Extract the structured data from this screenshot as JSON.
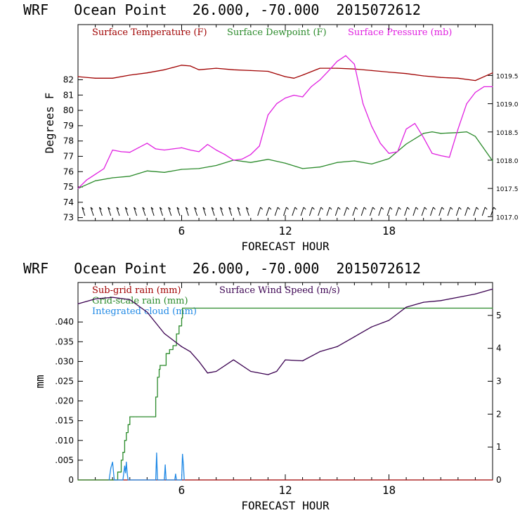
{
  "chart_data": [
    {
      "type": "line",
      "title": "WRF   Ocean Point   26.000, -70.000  2015072612",
      "xlabel": "FORECAST HOUR",
      "ylabel": "Degrees F",
      "xlim": [
        0,
        24
      ],
      "ylim": [
        72.8,
        85.6
      ],
      "y2lim": [
        1016.93,
        1020.4
      ],
      "x_ticks": [
        "6",
        "12",
        "18"
      ],
      "y_ticks": [
        "73",
        "74",
        "75",
        "76",
        "77",
        "78",
        "79",
        "80",
        "81",
        "82"
      ],
      "y2_ticks": [
        "1017.0",
        "1017.5",
        "1018.0",
        "1018.5",
        "1019.0",
        "1019.5"
      ],
      "grid": false,
      "legend_position": "top",
      "colors": {
        "temperature": "#a00000",
        "dewpoint": "#2a8a2a",
        "pressure": "#e020e0"
      },
      "series": [
        {
          "name": "Surface Temperature (F)",
          "axis": "left",
          "x": [
            0,
            1,
            2,
            3,
            4,
            5,
            6,
            6.5,
            7,
            8,
            9,
            10,
            11,
            12,
            12.5,
            13,
            14,
            15,
            16,
            17,
            18,
            19,
            20,
            21,
            22,
            23,
            24
          ],
          "y": [
            82.2,
            82.1,
            82.1,
            82.3,
            82.45,
            82.65,
            82.95,
            82.9,
            82.65,
            82.75,
            82.65,
            82.6,
            82.55,
            82.2,
            82.1,
            82.3,
            82.75,
            82.75,
            82.7,
            82.6,
            82.5,
            82.4,
            82.25,
            82.15,
            82.1,
            81.95,
            82.45
          ]
        },
        {
          "name": "Surface Dewpoint (F)",
          "axis": "left",
          "x": [
            0,
            1,
            2,
            3,
            4,
            5,
            6,
            7,
            8,
            9,
            10,
            11,
            12,
            13,
            14,
            15,
            16,
            17,
            18,
            19,
            20,
            20.5,
            21,
            22,
            22.5,
            23,
            24
          ],
          "y": [
            74.9,
            75.4,
            75.6,
            75.7,
            76.05,
            75.95,
            76.15,
            76.2,
            76.4,
            76.75,
            76.6,
            76.8,
            76.55,
            76.2,
            76.3,
            76.6,
            76.7,
            76.5,
            76.85,
            77.8,
            78.5,
            78.6,
            78.5,
            78.55,
            78.6,
            78.3,
            76.7
          ]
        },
        {
          "name": "Surface Pressure (mb)",
          "axis": "right",
          "x": [
            0,
            0.5,
            1,
            1.5,
            2,
            2.5,
            3,
            4,
            4.5,
            5,
            5.5,
            6,
            6.5,
            7,
            7.5,
            8,
            8.5,
            9,
            9.5,
            10,
            10.5,
            11,
            11.5,
            12,
            12.5,
            13,
            13.5,
            14,
            14.5,
            15,
            15.5,
            16,
            16.5,
            17,
            17.5,
            18,
            18.5,
            19,
            19.5,
            20,
            20.5,
            21,
            21.5,
            22,
            22.5,
            23,
            23.5,
            24
          ],
          "y": [
            1017.5,
            1017.65,
            1017.75,
            1017.85,
            1018.18,
            1018.15,
            1018.14,
            1018.3,
            1018.2,
            1018.18,
            1018.2,
            1018.22,
            1018.18,
            1018.15,
            1018.28,
            1018.18,
            1018.1,
            1018.0,
            1018.02,
            1018.1,
            1018.25,
            1018.8,
            1019.0,
            1019.1,
            1019.15,
            1019.12,
            1019.3,
            1019.42,
            1019.58,
            1019.75,
            1019.85,
            1019.7,
            1019.0,
            1018.6,
            1018.3,
            1018.12,
            1018.15,
            1018.55,
            1018.65,
            1018.4,
            1018.12,
            1018.08,
            1018.05,
            1018.55,
            1019.0,
            1019.2,
            1019.3,
            1019.3
          ]
        }
      ]
    },
    {
      "type": "line",
      "title": "WRF   Ocean Point   26.000, -70.000  2015072612",
      "xlabel": "FORECAST HOUR",
      "ylabel": "mm",
      "xlim": [
        0,
        24
      ],
      "ylim": [
        0,
        0.05
      ],
      "y2lim": [
        0,
        6.0
      ],
      "x_ticks": [
        "6",
        "12",
        "18"
      ],
      "y_ticks": [
        "0",
        ".005",
        ".010",
        ".015",
        ".020",
        ".025",
        ".030",
        ".035",
        ".040"
      ],
      "y2_ticks": [
        "0",
        "1",
        "2",
        "3",
        "4",
        "5"
      ],
      "grid": false,
      "legend_position": "top-left",
      "colors": {
        "subgrid": "#a00000",
        "gridscale": "#2a8a2a",
        "cloud": "#1e88e5",
        "wind": "#3a0050"
      },
      "series": [
        {
          "name": "Sub-grid rain (mm)",
          "axis": "left",
          "x": [
            0,
            24
          ],
          "y": [
            0,
            0
          ]
        },
        {
          "name": "Grid-scale rain (mm)",
          "axis": "left",
          "step": true,
          "x": [
            0,
            2,
            2.3,
            2.5,
            2.6,
            2.7,
            2.8,
            2.9,
            3.0,
            3.2,
            3.4,
            4.4,
            4.5,
            4.6,
            4.7,
            4.75,
            5.0,
            5.1,
            5.3,
            5.5,
            5.7,
            5.85,
            6.0,
            6.05,
            24
          ],
          "y": [
            0,
            0,
            0.002,
            0.005,
            0.007,
            0.01,
            0.012,
            0.014,
            0.016,
            0.016,
            0.016,
            0.016,
            0.021,
            0.026,
            0.028,
            0.029,
            0.029,
            0.032,
            0.033,
            0.034,
            0.037,
            0.039,
            0.041,
            0.0435,
            0.0435
          ]
        },
        {
          "name": "Integrated cloud (mm)",
          "axis": "left",
          "x": [
            1.8,
            1.9,
            2.0,
            2.1,
            2.6,
            2.7,
            2.75,
            2.8,
            2.85,
            2.9,
            4.5,
            4.55,
            4.6,
            5.0,
            5.05,
            5.1,
            5.6,
            5.65,
            5.7,
            6.0,
            6.05,
            6.1,
            6.15
          ],
          "y": [
            0,
            0.003,
            0.0045,
            0,
            0,
            0.0035,
            0.0018,
            0.0045,
            0.0015,
            0,
            0,
            0.0068,
            0,
            0,
            0.0038,
            0,
            0,
            0.0015,
            0,
            0,
            0.0065,
            0.0038,
            0
          ]
        },
        {
          "name": "Surface Wind Speed (m/s)",
          "axis": "right",
          "x": [
            0,
            1,
            2,
            3,
            4,
            5,
            6,
            6.5,
            7,
            7.5,
            8,
            9,
            10,
            11,
            11.5,
            12,
            13,
            14,
            15,
            16,
            17,
            18,
            19,
            20,
            21,
            22,
            23,
            24
          ],
          "y": [
            5.35,
            5.5,
            5.55,
            5.48,
            5.1,
            4.45,
            4.05,
            3.9,
            3.6,
            3.25,
            3.3,
            3.65,
            3.3,
            3.2,
            3.3,
            3.65,
            3.62,
            3.9,
            4.05,
            4.35,
            4.65,
            4.85,
            5.25,
            5.4,
            5.45,
            5.55,
            5.65,
            5.8
          ]
        }
      ]
    }
  ]
}
